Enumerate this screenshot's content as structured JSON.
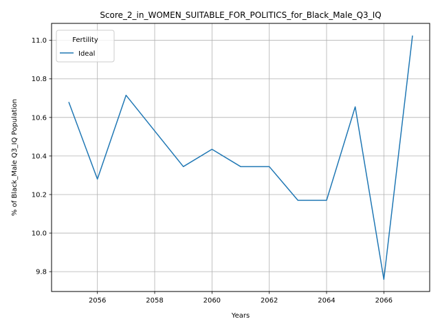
{
  "chart_data": {
    "type": "line",
    "title": "Score_2_in_WOMEN_SUITABLE_FOR_POLITICS_for_Black_Male_Q3_IQ",
    "xlabel": "Years",
    "ylabel": "% of Black_Male Q3_IQ Population",
    "x": [
      2055,
      2056,
      2057,
      2058,
      2059,
      2060,
      2061,
      2062,
      2063,
      2064,
      2065,
      2066,
      2067
    ],
    "series": [
      {
        "name": "Ideal",
        "color": "#1f77b4",
        "values": [
          10.68,
          10.28,
          10.715,
          10.53,
          10.345,
          10.435,
          10.345,
          10.345,
          10.17,
          10.17,
          10.655,
          9.76,
          11.025
        ]
      }
    ],
    "xlim": [
      2054.4,
      2067.6
    ],
    "ylim": [
      9.697,
      11.088
    ],
    "xticks": [
      2056,
      2058,
      2060,
      2062,
      2064,
      2066
    ],
    "yticks": [
      9.8,
      10.0,
      10.2,
      10.4,
      10.6,
      10.8,
      11.0
    ],
    "ytick_labels": [
      "9.8",
      "10.0",
      "10.2",
      "10.4",
      "10.6",
      "10.8",
      "11.0"
    ],
    "grid": true,
    "legend": {
      "title": "Fertility",
      "placement": "top-left"
    }
  }
}
